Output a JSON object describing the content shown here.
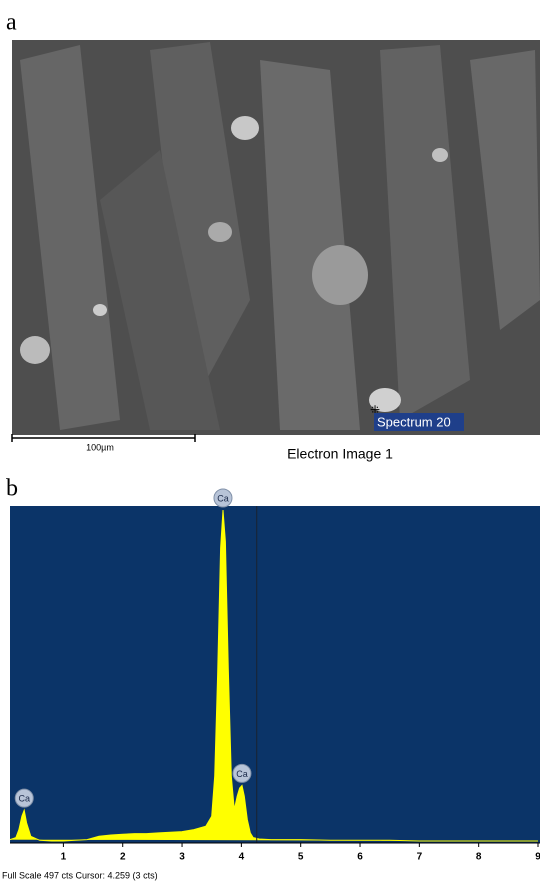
{
  "panel_a": {
    "label": "a",
    "marker_label": "Spectrum 20",
    "scale_bar_label": "100µm",
    "caption": "Electron Image 1"
  },
  "panel_b_label": "b",
  "chart_data": {
    "type": "area",
    "x": [
      0.1,
      0.2,
      0.25,
      0.3,
      0.34,
      0.38,
      0.45,
      0.6,
      0.8,
      1.0,
      1.2,
      1.4,
      1.6,
      1.8,
      2.0,
      2.2,
      2.4,
      2.6,
      2.8,
      3.0,
      3.2,
      3.4,
      3.5,
      3.55,
      3.6,
      3.65,
      3.69,
      3.73,
      3.78,
      3.83,
      3.88,
      3.93,
      3.97,
      4.01,
      4.05,
      4.1,
      4.15,
      4.2,
      4.3,
      4.5,
      5,
      5.5,
      6,
      6.5,
      7,
      7.5,
      8,
      8.5,
      9.0
    ],
    "series": [
      {
        "color": "#ffff00",
        "values": [
          5,
          8,
          20,
          40,
          49,
          30,
          10,
          4,
          3,
          3,
          4,
          5,
          10,
          12,
          13,
          14,
          14,
          15,
          16,
          17,
          20,
          25,
          40,
          100,
          250,
          440,
          497,
          450,
          260,
          100,
          50,
          70,
          82,
          86,
          70,
          35,
          15,
          8,
          6,
          5,
          5,
          4,
          4,
          4,
          3,
          3,
          3,
          3,
          3
        ]
      }
    ],
    "xlim": [
      0.1,
      9.0
    ],
    "xticks": [
      1,
      2,
      3,
      4,
      5,
      6,
      7,
      8,
      9
    ],
    "ylim": [
      0,
      497
    ],
    "background": "#0b3468",
    "cursor": 4.259,
    "annotations": [
      {
        "text": "Ca",
        "x": 0.34,
        "y": 49
      },
      {
        "text": "Ca",
        "x": 3.69,
        "y": 497
      },
      {
        "text": "Ca",
        "x": 4.01,
        "y": 86
      }
    ],
    "footer": "Full Scale 497 cts Cursor: 4.259  (3 cts)"
  }
}
